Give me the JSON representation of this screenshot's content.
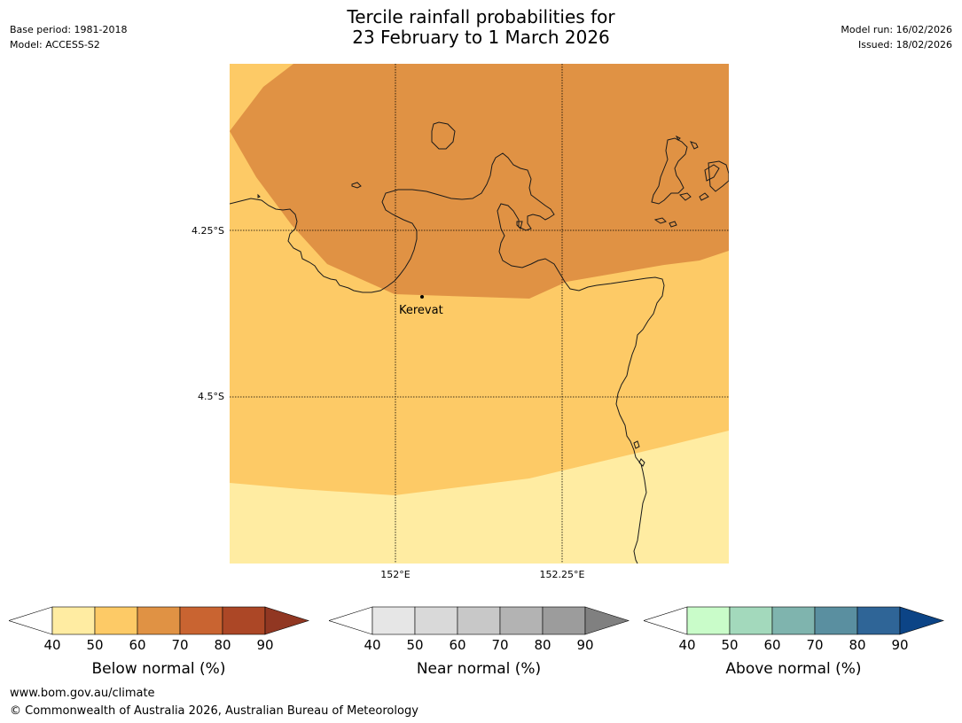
{
  "header": {
    "title_line1": "Tercile rainfall probabilities for",
    "title_line2": "23 February to 1 March 2026",
    "base_period": "Base period: 1981-2018",
    "model": "Model: ACCESS-S2",
    "model_run": "Model run: 16/02/2026",
    "issued": "Issued: 18/02/2026"
  },
  "map": {
    "lat_labels": [
      "4.25°S",
      "4.5°S"
    ],
    "lon_labels": [
      "152°E",
      "152.25°E"
    ],
    "place": "Kerevat",
    "category_shown": "Below normal",
    "probability_bands_percent": [
      "40-50",
      "50-60",
      "60-70"
    ],
    "band_colors": {
      "40-50": "#ffeca2",
      "50-60": "#fdca66",
      "60-70": "#e09244"
    },
    "coastline_color": "#1a1a1a"
  },
  "colorbars": [
    {
      "label": "Below normal (%)",
      "ticks": [
        "40",
        "50",
        "60",
        "70",
        "80",
        "90"
      ],
      "colors": [
        "#ffffff",
        "#ffeca2",
        "#fdca66",
        "#e09244",
        "#c96431",
        "#ac4726",
        "#913722"
      ]
    },
    {
      "label": "Near normal (%)",
      "ticks": [
        "40",
        "50",
        "60",
        "70",
        "80",
        "90"
      ],
      "colors": [
        "#ffffff",
        "#e6e6e6",
        "#d9d9d9",
        "#c8c8c8",
        "#b3b3b3",
        "#9c9c9c",
        "#808080"
      ]
    },
    {
      "label": "Above normal (%)",
      "ticks": [
        "40",
        "50",
        "60",
        "70",
        "80",
        "90"
      ],
      "colors": [
        "#ffffff",
        "#c9fcc9",
        "#a3d9bc",
        "#7fb4ae",
        "#5a8fa0",
        "#2f6597",
        "#0c4486"
      ]
    }
  ],
  "footer": {
    "website": "www.bom.gov.au/climate",
    "copyright": "© Commonwealth of Australia 2026, Australian Bureau of Meteorology"
  }
}
